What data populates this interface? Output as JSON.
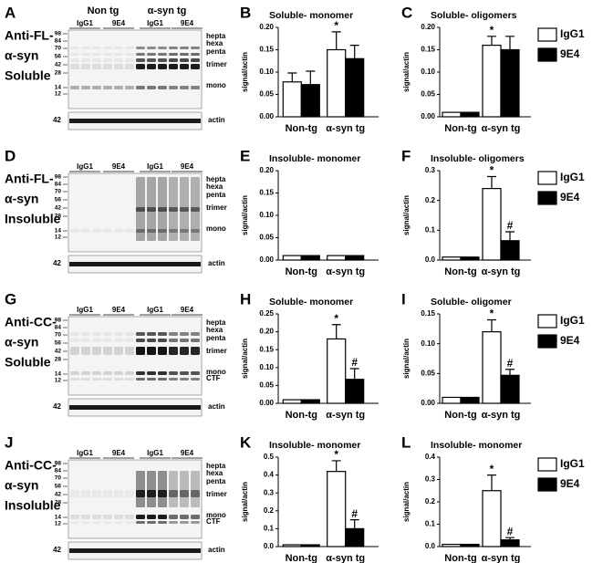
{
  "chart_data": [
    {
      "type": "bar",
      "panel": "B",
      "title": "Soluble- monomer",
      "ylabel": "signal/actin",
      "categories": [
        "Non-tg",
        "α-syn tg"
      ],
      "series": [
        {
          "name": "IgG1",
          "color": "#ffffff",
          "values": [
            0.078,
            0.15
          ],
          "errors": [
            0.02,
            0.04
          ],
          "significance": [
            null,
            "*"
          ]
        },
        {
          "name": "9E4",
          "color": "#000000",
          "values": [
            0.072,
            0.13
          ],
          "errors": [
            0.03,
            0.03
          ],
          "significance": [
            null,
            null
          ]
        }
      ],
      "ylim": [
        0,
        0.2
      ],
      "yticks": [
        {
          "value": 0,
          "label": "0.00"
        },
        {
          "value": 0.05,
          "label": "0.05"
        },
        {
          "value": 0.1,
          "label": "0.10"
        },
        {
          "value": 0.15,
          "label": "0.15"
        },
        {
          "value": 0.2,
          "label": "0.20"
        }
      ],
      "legend": false
    },
    {
      "type": "bar",
      "panel": "C",
      "title": "Soluble- oligomers",
      "ylabel": "signal/actin",
      "categories": [
        "Non-tg",
        "α-syn tg"
      ],
      "series": [
        {
          "name": "IgG1",
          "color": "#ffffff",
          "values": [
            0.01,
            0.16
          ],
          "errors": [
            null,
            0.02
          ],
          "significance": [
            null,
            "*"
          ]
        },
        {
          "name": "9E4",
          "color": "#000000",
          "values": [
            0.01,
            0.15
          ],
          "errors": [
            null,
            0.03
          ],
          "significance": [
            null,
            null
          ]
        }
      ],
      "ylim": [
        0,
        0.2
      ],
      "yticks": [
        {
          "value": 0,
          "label": "0.00"
        },
        {
          "value": 0.05,
          "label": "0.05"
        },
        {
          "value": 0.1,
          "label": "0.10"
        },
        {
          "value": 0.15,
          "label": "0.15"
        },
        {
          "value": 0.2,
          "label": "0.20"
        }
      ],
      "legend": "right"
    },
    {
      "type": "bar",
      "panel": "E",
      "title": "Insoluble- monomer",
      "ylabel": "signal/actin",
      "categories": [
        "Non-tg",
        "α-syn tg"
      ],
      "series": [
        {
          "name": "IgG1",
          "color": "#ffffff",
          "values": [
            0.01,
            0.01
          ],
          "errors": [
            null,
            null
          ],
          "significance": [
            null,
            null
          ]
        },
        {
          "name": "9E4",
          "color": "#000000",
          "values": [
            0.01,
            0.01
          ],
          "errors": [
            null,
            null
          ],
          "significance": [
            null,
            null
          ]
        }
      ],
      "ylim": [
        0,
        0.2
      ],
      "yticks": [
        {
          "value": 0,
          "label": "0.00"
        },
        {
          "value": 0.05,
          "label": "0.05"
        },
        {
          "value": 0.1,
          "label": "0.10"
        },
        {
          "value": 0.15,
          "label": "0.15"
        },
        {
          "value": 0.2,
          "label": "0.20"
        }
      ],
      "legend": false
    },
    {
      "type": "bar",
      "panel": "F",
      "title": "Insoluble- oligomers",
      "ylabel": "signal/actin",
      "categories": [
        "Non-tg",
        "α-syn tg"
      ],
      "series": [
        {
          "name": "IgG1",
          "color": "#ffffff",
          "values": [
            0.01,
            0.24
          ],
          "errors": [
            null,
            0.04
          ],
          "significance": [
            null,
            "*"
          ]
        },
        {
          "name": "9E4",
          "color": "#000000",
          "values": [
            0.01,
            0.065
          ],
          "errors": [
            null,
            0.03
          ],
          "significance": [
            null,
            "#"
          ]
        }
      ],
      "ylim": [
        0,
        0.3
      ],
      "yticks": [
        {
          "value": 0,
          "label": "0.0"
        },
        0.1,
        0.2,
        0.3
      ],
      "legend": "right"
    },
    {
      "type": "bar",
      "panel": "H",
      "title": "Soluble- monomer",
      "ylabel": "signal/actin",
      "categories": [
        "Non-tg",
        "α-syn tg"
      ],
      "series": [
        {
          "name": "IgG1",
          "color": "#ffffff",
          "values": [
            0.01,
            0.18
          ],
          "errors": [
            null,
            0.04
          ],
          "significance": [
            null,
            "*"
          ]
        },
        {
          "name": "9E4",
          "color": "#000000",
          "values": [
            0.01,
            0.067
          ],
          "errors": [
            null,
            0.03
          ],
          "significance": [
            null,
            "#"
          ]
        }
      ],
      "ylim": [
        0,
        0.25
      ],
      "yticks": [
        {
          "value": 0,
          "label": "0.00"
        },
        {
          "value": 0.05,
          "label": "0.05"
        },
        {
          "value": 0.1,
          "label": "0.10"
        },
        {
          "value": 0.15,
          "label": "0.15"
        },
        {
          "value": 0.2,
          "label": "0.20"
        },
        {
          "value": 0.25,
          "label": "0.25"
        }
      ],
      "legend": false
    },
    {
      "type": "bar",
      "panel": "I",
      "title": "Soluble- oligomer",
      "ylabel": "signal/actin",
      "categories": [
        "Non-tg",
        "α-syn tg"
      ],
      "series": [
        {
          "name": "IgG1",
          "color": "#ffffff",
          "values": [
            0.01,
            0.12
          ],
          "errors": [
            null,
            0.02
          ],
          "significance": [
            null,
            "*"
          ]
        },
        {
          "name": "9E4",
          "color": "#000000",
          "values": [
            0.01,
            0.047
          ],
          "errors": [
            null,
            0.01
          ],
          "significance": [
            null,
            "#"
          ]
        }
      ],
      "ylim": [
        0,
        0.15
      ],
      "yticks": [
        {
          "value": 0,
          "label": "0.00"
        },
        {
          "value": 0.05,
          "label": "0.05"
        },
        {
          "value": 0.1,
          "label": "0.10"
        },
        {
          "value": 0.15,
          "label": "0.15"
        }
      ],
      "legend": "right"
    },
    {
      "type": "bar",
      "panel": "K",
      "title": "Insoluble- monomer",
      "ylabel": "signal/actin",
      "categories": [
        "Non-tg",
        "α-syn tg"
      ],
      "series": [
        {
          "name": "IgG1",
          "color": "#ffffff",
          "values": [
            0.01,
            0.42
          ],
          "errors": [
            null,
            0.06
          ],
          "significance": [
            null,
            "*"
          ]
        },
        {
          "name": "9E4",
          "color": "#000000",
          "values": [
            0.01,
            0.1
          ],
          "errors": [
            null,
            0.05
          ],
          "significance": [
            null,
            "#"
          ]
        }
      ],
      "ylim": [
        0,
        0.5
      ],
      "yticks": [
        {
          "value": 0,
          "label": "0.0"
        },
        0.1,
        0.2,
        0.3,
        0.4,
        0.5
      ],
      "legend": false
    },
    {
      "type": "bar",
      "panel": "L",
      "title": "Insoluble- monomer",
      "ylabel": "signal/actin",
      "categories": [
        "Non-tg",
        "α-syn tg"
      ],
      "series": [
        {
          "name": "IgG1",
          "color": "#ffffff",
          "values": [
            0.01,
            0.25
          ],
          "errors": [
            null,
            0.07
          ],
          "significance": [
            null,
            "*"
          ]
        },
        {
          "name": "9E4",
          "color": "#000000",
          "values": [
            0.01,
            0.03
          ],
          "errors": [
            null,
            0.01
          ],
          "significance": [
            null,
            "#"
          ]
        }
      ],
      "ylim": [
        0,
        0.4
      ],
      "yticks": [
        {
          "value": 0,
          "label": "0.0"
        },
        0.1,
        0.2,
        0.3,
        0.4
      ],
      "legend": "right"
    }
  ],
  "blots": [
    {
      "panel": "A",
      "title": [
        "Anti-FL-",
        "α-syn",
        "Soluble"
      ],
      "groups": [
        "Non tg",
        "α-syn tg"
      ],
      "lanes": [
        "IgG1",
        "9E4",
        "IgG1",
        "9E4"
      ],
      "markers": [
        98,
        84,
        70,
        56,
        42,
        28,
        14,
        12
      ],
      "bands": [
        "hepta",
        "hexa",
        "penta",
        "trimer",
        "mono"
      ],
      "loading_marker": 42,
      "loading_label": "actin"
    },
    {
      "panel": "D",
      "title": [
        "Anti-FL-",
        "α-syn",
        "Insoluble"
      ],
      "lanes": [
        "IgG1",
        "9E4",
        "IgG1",
        "9E4"
      ],
      "markers": [
        98,
        84,
        70,
        56,
        42,
        28,
        14,
        12
      ],
      "bands": [
        "hepta",
        "hexa",
        "penta",
        "trimer",
        "mono"
      ],
      "loading_marker": 42,
      "loading_label": "actin"
    },
    {
      "panel": "G",
      "title": [
        "Anti-CC-",
        "α-syn",
        "Soluble"
      ],
      "lanes": [
        "IgG1",
        "9E4",
        "IgG1",
        "9E4"
      ],
      "markers": [
        98,
        84,
        70,
        56,
        42,
        28,
        14,
        12
      ],
      "bands": [
        "hepta",
        "hexa",
        "penta",
        "trimer",
        "mono",
        "CTF"
      ],
      "loading_marker": 42,
      "loading_label": "actin"
    },
    {
      "panel": "J",
      "title": [
        "Anti-CC-",
        "α-syn",
        "Insoluble"
      ],
      "lanes": [
        "IgG1",
        "9E4",
        "IgG1",
        "9E4"
      ],
      "markers": [
        98,
        84,
        70,
        56,
        42,
        28,
        14,
        12
      ],
      "bands": [
        "hepta",
        "hexa",
        "penta",
        "trimer",
        "mono",
        "CTF"
      ],
      "loading_marker": 42,
      "loading_label": "actin"
    }
  ]
}
